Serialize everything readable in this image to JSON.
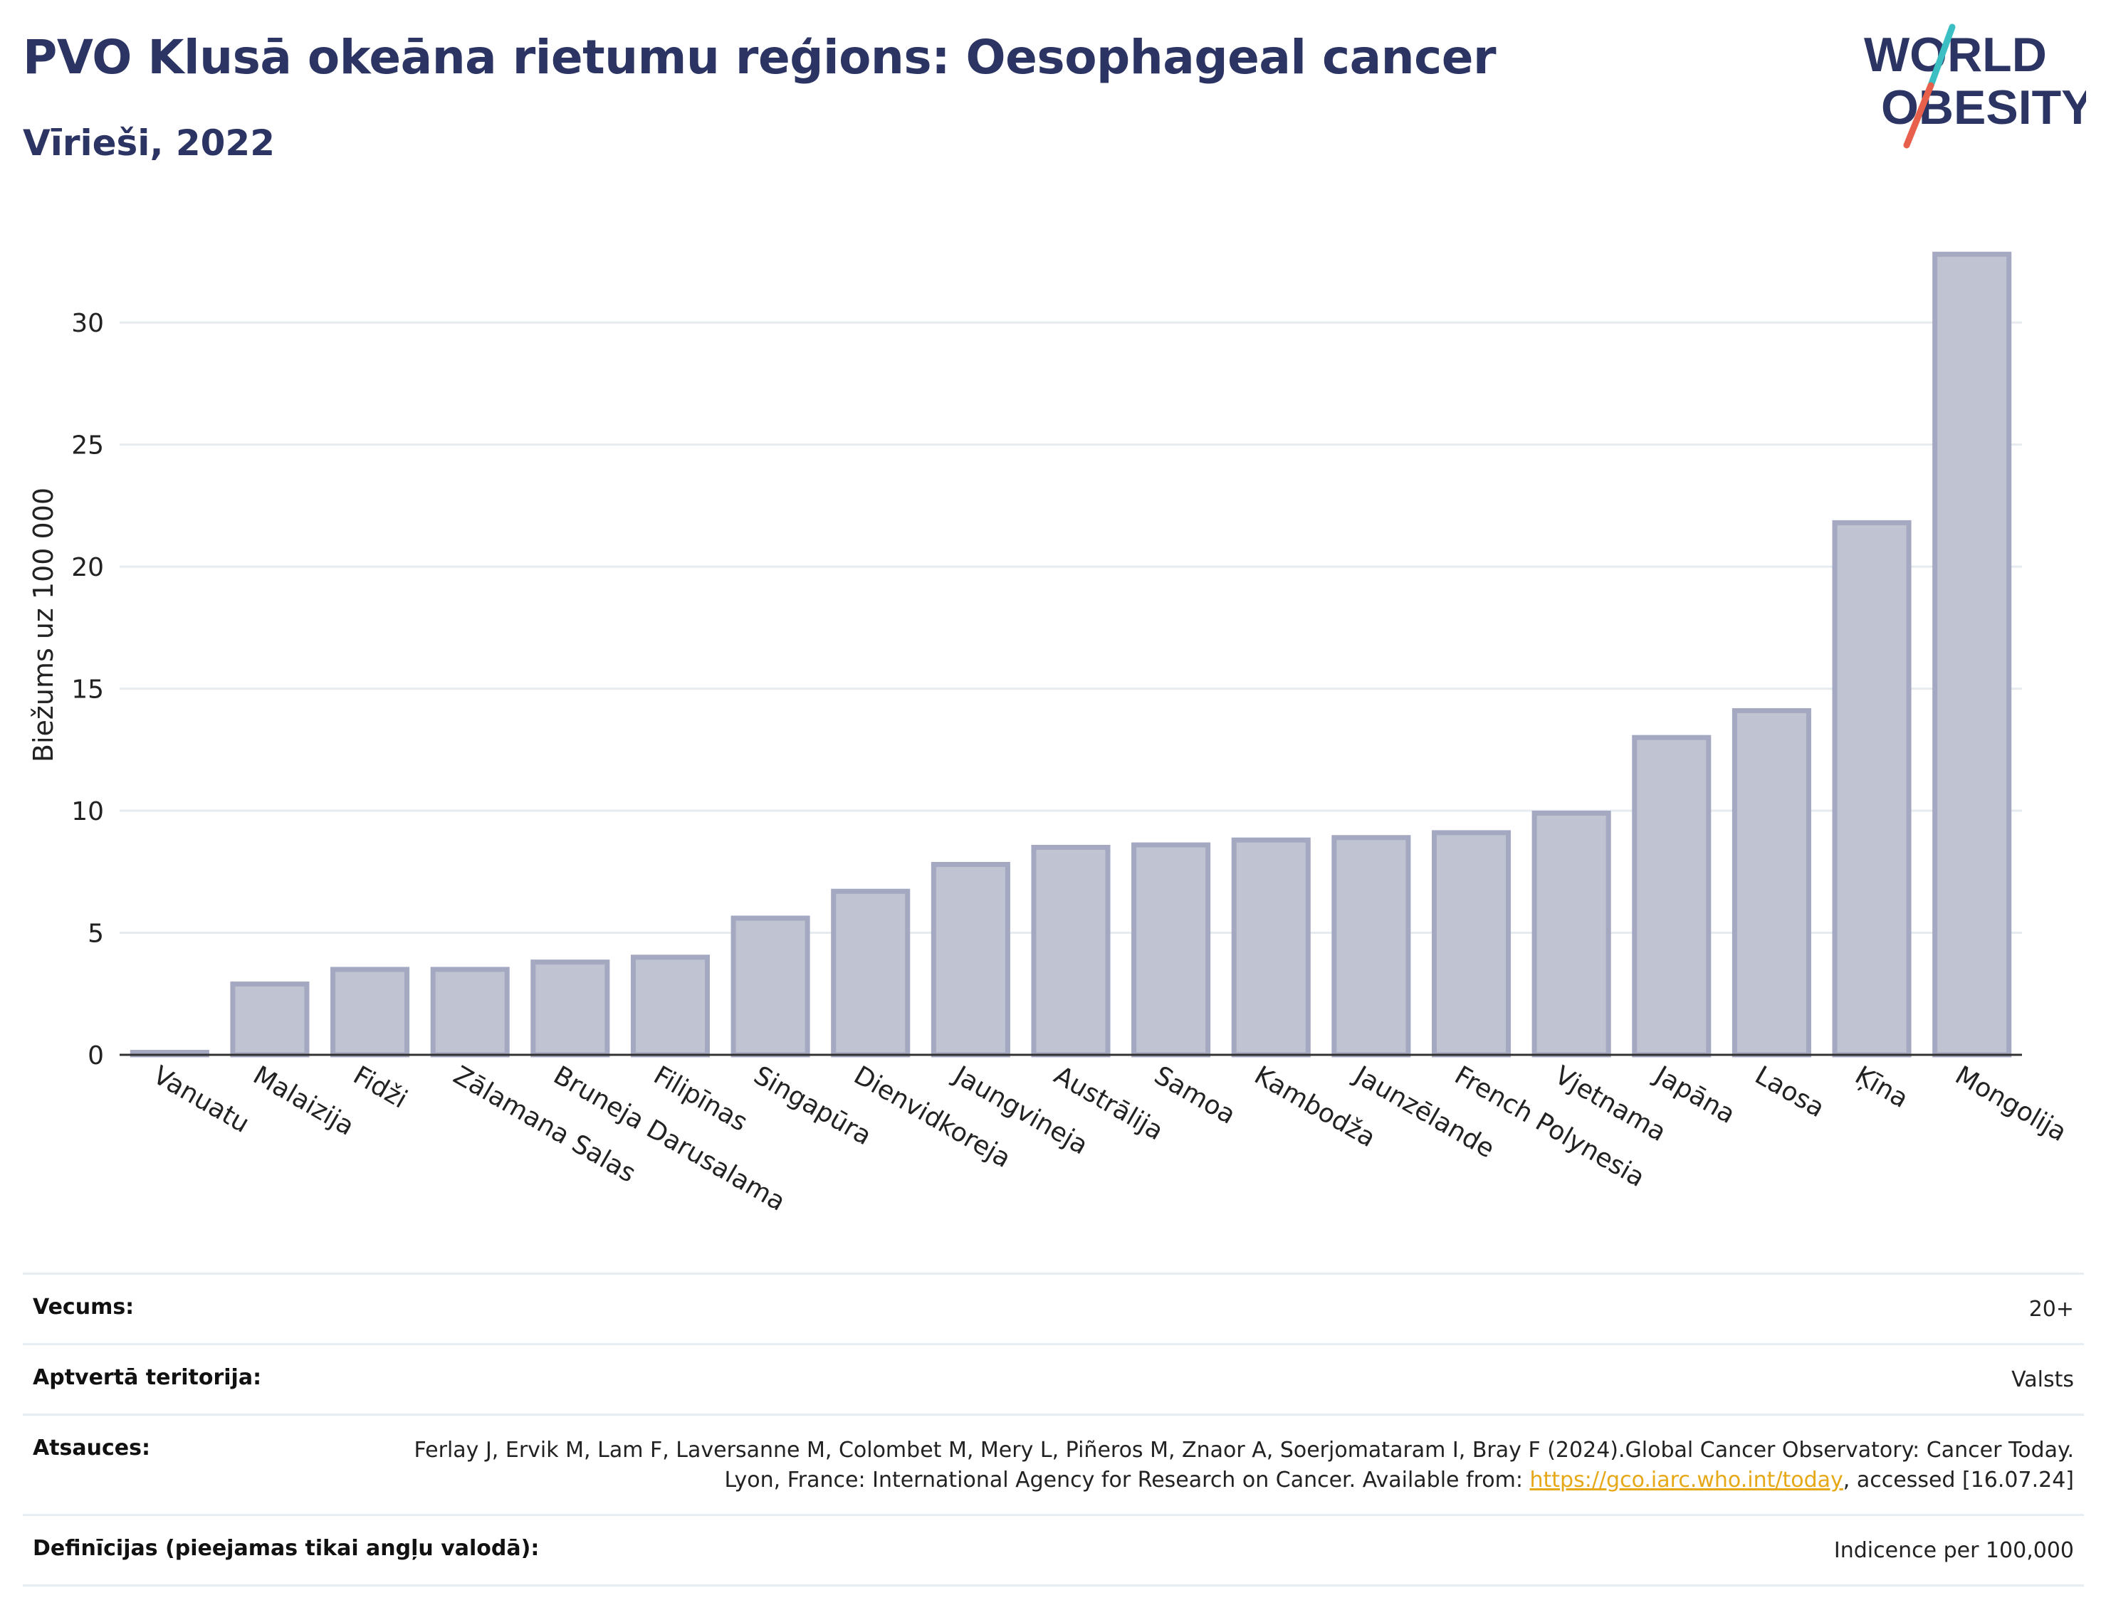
{
  "header": {
    "title": "PVO Klusā okeāna rietumu reģions: Oesophageal cancer",
    "subtitle": "Vīrieši, 2022"
  },
  "logo": {
    "line1": "WORLD",
    "line2": "OBESITY",
    "colors": {
      "text": "#2b3462",
      "slash_teal": "#3bbfc3",
      "slash_red": "#e8604c"
    }
  },
  "chart_data": {
    "type": "bar",
    "title": "",
    "xlabel": "",
    "ylabel": "Biežums uz 100 000",
    "ylim": [
      0,
      34
    ],
    "yticks": [
      0,
      5,
      10,
      15,
      20,
      25,
      30
    ],
    "grid": true,
    "categories": [
      "Vanuatu",
      "Malaizija",
      "Fidži",
      "Zālamana Salas",
      "Bruneja Darusalama",
      "Filipīnas",
      "Singapūra",
      "Dienvidkoreja",
      "Jaungvineja",
      "Austrālija",
      "Samoa",
      "Kambodža",
      "Jaunzēlande",
      "French Polynesia",
      "Vjetnama",
      "Japāna",
      "Laosa",
      "Ķīna",
      "Mongolija"
    ],
    "values": [
      0.1,
      2.9,
      3.5,
      3.5,
      3.8,
      4.0,
      5.6,
      6.7,
      7.8,
      8.5,
      8.6,
      8.8,
      8.9,
      9.1,
      9.9,
      13.0,
      14.1,
      21.8,
      32.8
    ],
    "colors": {
      "bar_fill": "#c0c3d1",
      "bar_stroke": "#a4a8c0",
      "grid": "#e6ebf0",
      "axis": "#333333"
    }
  },
  "info": {
    "rows": [
      {
        "label": "Vecums:",
        "value": "20+"
      },
      {
        "label": "Aptvertā teritorija:",
        "value": "Valsts"
      },
      {
        "label": "Atsauces:",
        "value_before": "Ferlay J, Ervik M, Lam F, Laversanne M, Colombet M, Mery L, Piñeros M, Znaor A, Soerjomataram I, Bray F (2024).Global Cancer Observatory: Cancer Today. Lyon, France: International Agency for Research on Cancer. Available from: ",
        "link": "https://gco.iarc.who.int/today",
        "value_after": ", accessed [16.07.24]"
      },
      {
        "label": "Definīcijas (pieejamas tikai angļu valodā):",
        "value": "Indicence per 100,000"
      }
    ]
  }
}
